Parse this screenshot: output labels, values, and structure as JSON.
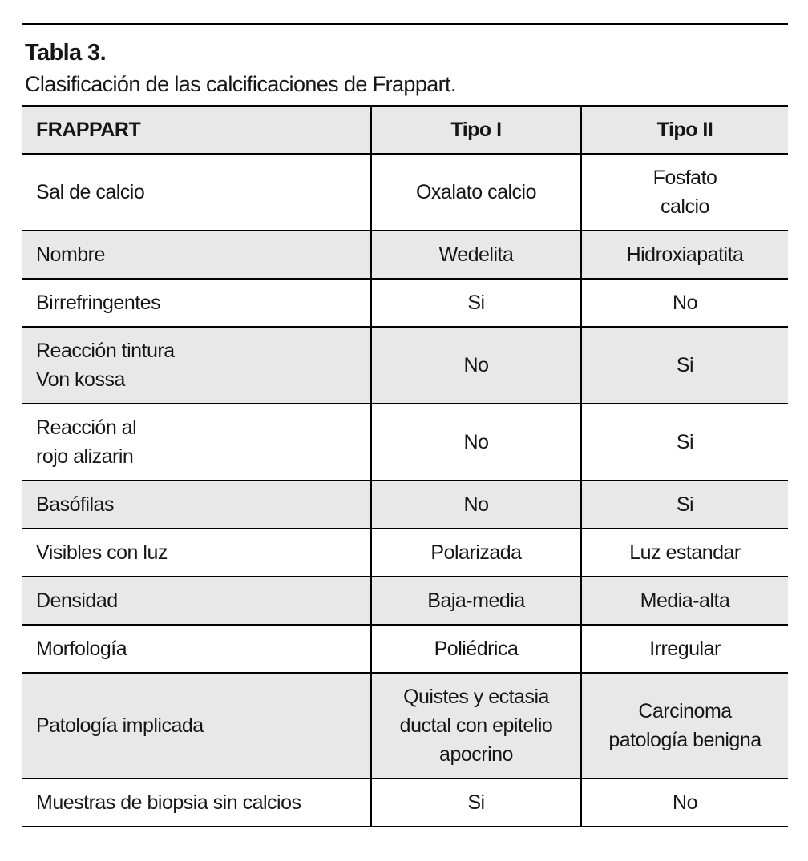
{
  "caption": {
    "title": "Tabla 3.",
    "subtitle": "Clasificación de las calcificaciones de Frappart."
  },
  "table": {
    "columns": [
      "FRAPPART",
      "Tipo I",
      "Tipo II"
    ],
    "rows": [
      {
        "label": "Sal de calcio",
        "tipo1": "Oxalato calcio",
        "tipo2": "Fosfato\ncalcio",
        "shaded": false
      },
      {
        "label": "Nombre",
        "tipo1": "Wedelita",
        "tipo2": "Hidroxiapatita",
        "shaded": true
      },
      {
        "label": "Birrefringentes",
        "tipo1": "Si",
        "tipo2": "No",
        "shaded": false
      },
      {
        "label": "Reacción tintura\nVon kossa",
        "tipo1": "No",
        "tipo2": "Si",
        "shaded": true
      },
      {
        "label": "Reacción al\nrojo alizarin",
        "tipo1": "No",
        "tipo2": "Si",
        "shaded": false
      },
      {
        "label": "Basófilas",
        "tipo1": "No",
        "tipo2": "Si",
        "shaded": true
      },
      {
        "label": "Visibles con luz",
        "tipo1": "Polarizada",
        "tipo2": "Luz estandar",
        "shaded": false
      },
      {
        "label": "Densidad",
        "tipo1": "Baja-media",
        "tipo2": "Media-alta",
        "shaded": true
      },
      {
        "label": "Morfología",
        "tipo1": "Poliédrica",
        "tipo2": "Irregular",
        "shaded": false
      },
      {
        "label": "Patología implicada",
        "tipo1": "Quistes y ectasia\nductal con epitelio\napocrino",
        "tipo2": "Carcinoma\npatología benigna",
        "shaded": true
      },
      {
        "label": "Muestras de biopsia sin calcios",
        "tipo1": "Si",
        "tipo2": "No",
        "shaded": false
      }
    ]
  },
  "colors": {
    "row_shade": "#e8e8e8",
    "border": "#000000",
    "text": "#161616",
    "background": "#ffffff"
  }
}
